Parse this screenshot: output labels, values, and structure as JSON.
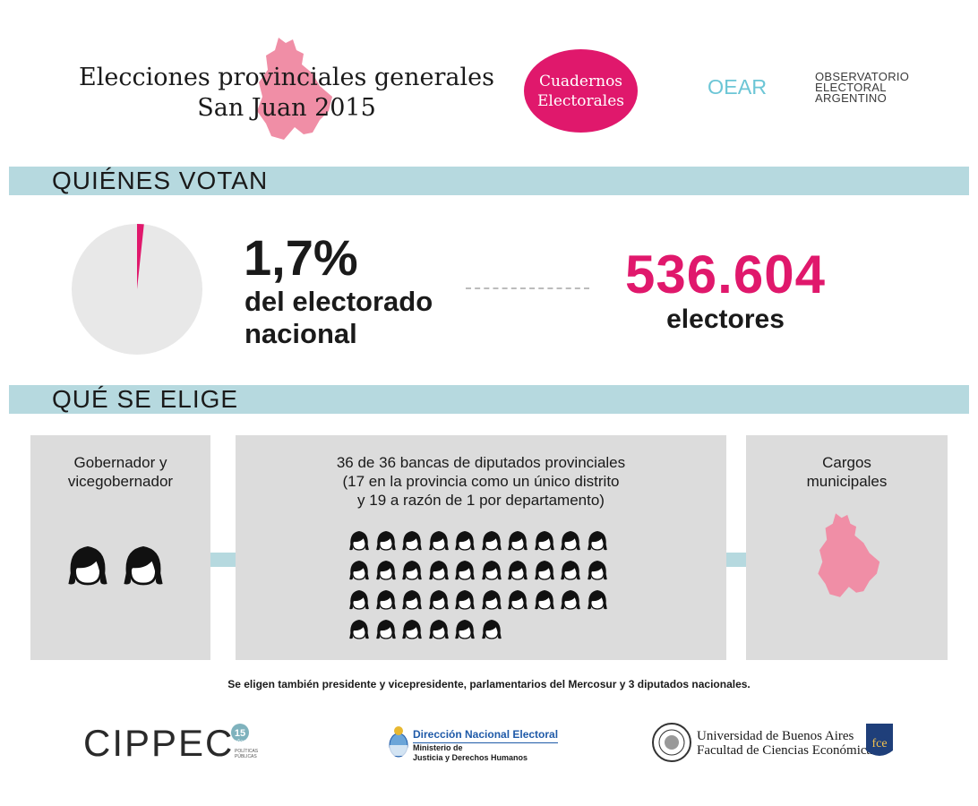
{
  "header": {
    "title_line1": "Elecciones provinciales generales",
    "title_line2": "San Juan 2015",
    "badge_line1": "Cuadernos",
    "badge_line2": "Electorales",
    "oear_logo_text": "OEAR",
    "oear_line1": "OBSERVATORIO",
    "oear_line2": "ELECTORAL",
    "oear_line3": "ARGENTINO"
  },
  "sections": {
    "who_votes": "QUIÉNES VOTAN",
    "what_is_elected": "QUÉ SE ELIGE"
  },
  "stats": {
    "percent": "1,7%",
    "percent_share": 0.017,
    "percent_label_line1": "del electorado",
    "percent_label_line2": "nacional",
    "electors_count": "536.604",
    "electors_label": "electores"
  },
  "offices": {
    "governor_line1": "Gobernador y",
    "governor_line2": "vicegobernador",
    "governor_icons": 2,
    "deputies_line1": "36 de 36 bancas de diputados provinciales",
    "deputies_line2": "(17 en la provincia como un único distrito",
    "deputies_line3": "y 19 a razón de 1 por departamento)",
    "deputies_icons": 36,
    "municipal_line1": "Cargos",
    "municipal_line2": "municipales"
  },
  "footnote": "Se eligen también presidente y vicepresidente, parlamentarios del Mercosur y 3 diputados nacionales.",
  "footer": {
    "cippec": "CIPPEC",
    "cippec_years": "15",
    "cippec_years_sub": "años",
    "cippec_sub_line1": "POLÍTICAS",
    "cippec_sub_line2": "PÚBLICAS",
    "dne_title": "Dirección Nacional Electoral",
    "dne_line1": "Ministerio de",
    "dne_line2": "Justicia y Derechos Humanos",
    "uba_line1": "Universidad de Buenos Aires",
    "uba_line2": "Facultad de Ciencias Económicas",
    "fce_text": "fce"
  },
  "colors": {
    "accent": "#e0186c",
    "map_pink": "#f08ea6",
    "section_bar": "#b6d9df",
    "box_gray": "#dcdcdc",
    "pie_gray": "#e8e8e8",
    "oear_teal": "#6cc6d6"
  }
}
